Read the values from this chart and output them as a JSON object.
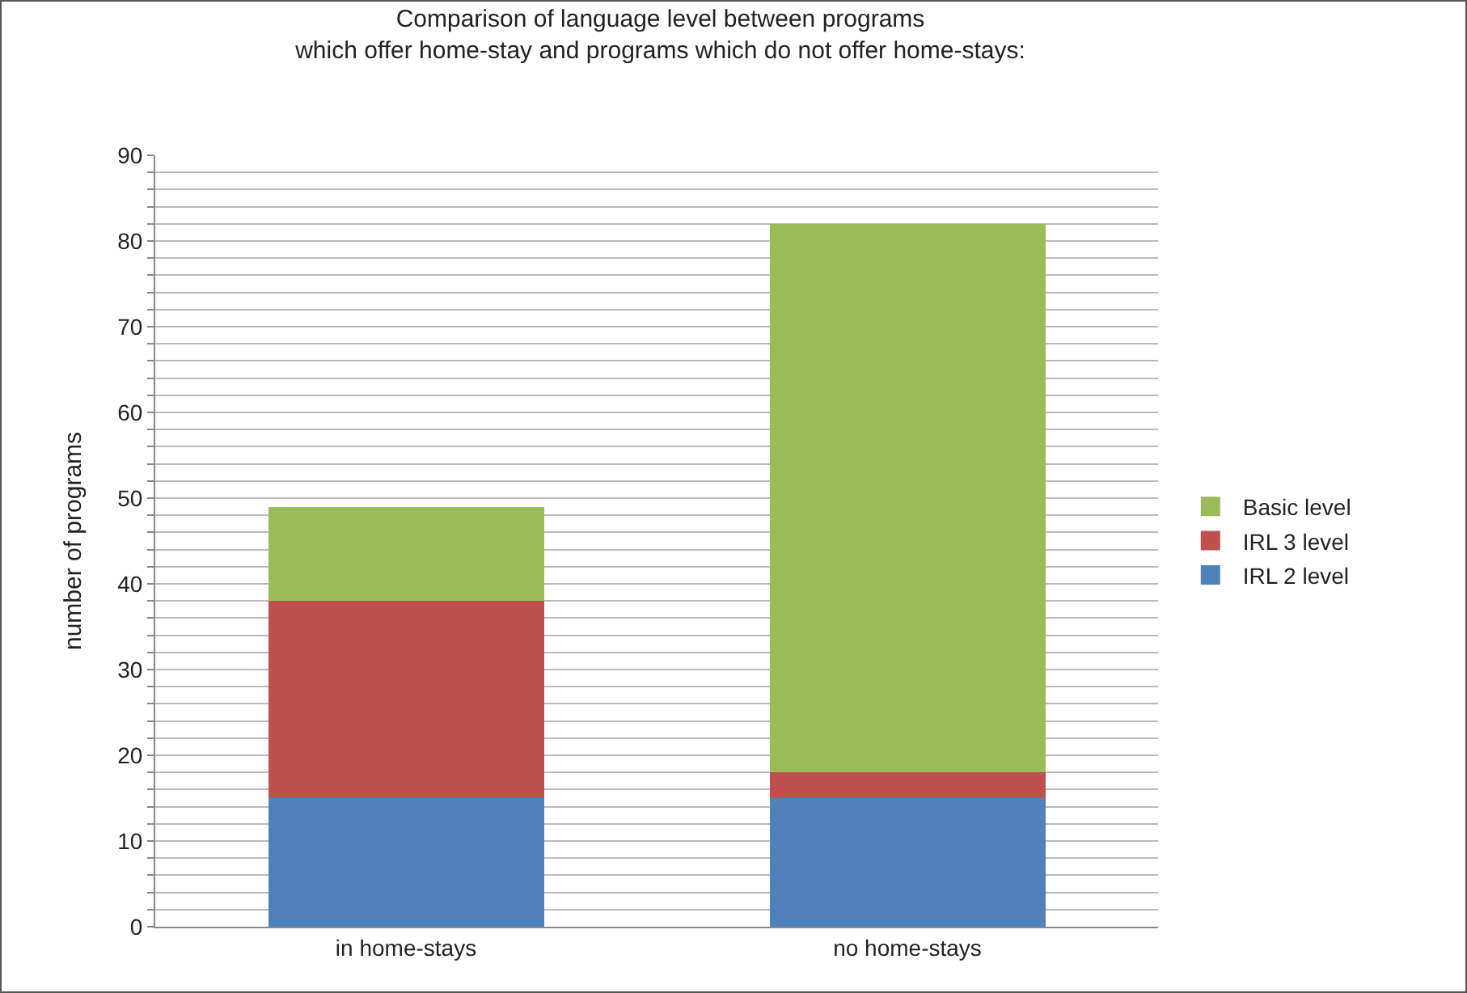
{
  "chart_data": {
    "type": "bar",
    "title": "Comparison of language level between programs\nwhich offer home-stay and programs which do not offer home-stays:",
    "ylabel": "number of programs",
    "categories": [
      "in home-stays",
      "no home-stays"
    ],
    "series": [
      {
        "name": "IRL 2 level",
        "color": "#4f81bd",
        "values": [
          15,
          15
        ]
      },
      {
        "name": "IRL 3 level",
        "color": "#c0504d",
        "values": [
          23,
          3
        ]
      },
      {
        "name": "Basic level",
        "color": "#9bbb59",
        "values": [
          11,
          64
        ]
      }
    ],
    "stacked": true,
    "ylim": [
      0,
      90
    ],
    "yticks": [
      0,
      {
        "value": 2,
        "label": null
      },
      {
        "value": 4,
        "label": null
      },
      {
        "value": 6,
        "label": null
      },
      {
        "value": 8,
        "label": null
      },
      10,
      {
        "value": 12,
        "label": null
      },
      {
        "value": 14,
        "label": null
      },
      {
        "value": 16,
        "label": null
      },
      {
        "value": 18,
        "label": null
      },
      20,
      {
        "value": 22,
        "label": null
      },
      {
        "value": 24,
        "label": null
      },
      {
        "value": 26,
        "label": null
      },
      {
        "value": 28,
        "label": null
      },
      30,
      {
        "value": 32,
        "label": null
      },
      {
        "value": 34,
        "label": null
      },
      {
        "value": 36,
        "label": null
      },
      {
        "value": 38,
        "label": null
      },
      40,
      {
        "value": 42,
        "label": null
      },
      {
        "value": 44,
        "label": null
      },
      {
        "value": 46,
        "label": null
      },
      {
        "value": 48,
        "label": null
      },
      50,
      {
        "value": 52,
        "label": null
      },
      {
        "value": 54,
        "label": null
      },
      {
        "value": 56,
        "label": null
      },
      {
        "value": 58,
        "label": null
      },
      60,
      {
        "value": 62,
        "label": null
      },
      {
        "value": 64,
        "label": null
      },
      {
        "value": 66,
        "label": null
      },
      {
        "value": 68,
        "label": null
      },
      70,
      {
        "value": 72,
        "label": null
      },
      {
        "value": 74,
        "label": null
      },
      {
        "value": 76,
        "label": null
      },
      {
        "value": 78,
        "label": null
      },
      80,
      {
        "value": 82,
        "label": null
      },
      {
        "value": 84,
        "label": null
      },
      {
        "value": 86,
        "label": null
      },
      {
        "value": 88,
        "label": null
      },
      90
    ],
    "grid": true,
    "legend": "right"
  }
}
